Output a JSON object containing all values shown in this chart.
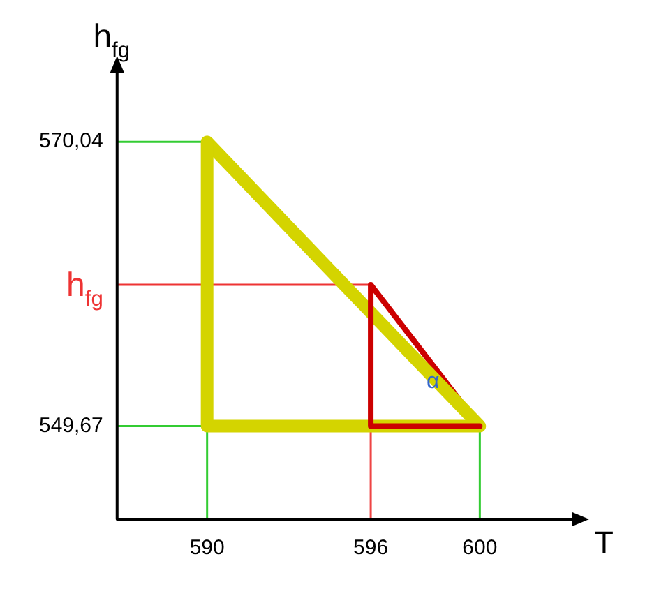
{
  "chart_data": {
    "type": "line",
    "xlabel": "T",
    "ylabel": "h$_{fg}$",
    "xlim": [
      586.7,
      603.6
    ],
    "ylim": [
      543,
      575.4
    ],
    "xticks": [
      590,
      596,
      600
    ],
    "yticks": [
      {
        "value": 549.67,
        "label": "549,67"
      },
      {
        "value": 570.04,
        "label": "570,04"
      }
    ],
    "series": [
      {
        "color": "#d4d400",
        "x": [
          590,
          600
        ],
        "values": [
          570.04,
          549.67
        ]
      },
      {
        "color": "#cc0000",
        "x": [
          596,
          600
        ],
        "values": [
          559.8,
          549.67
        ]
      }
    ],
    "ref_lines": [
      {
        "axis": "x",
        "value": 590,
        "color": "#33cc33"
      },
      {
        "axis": "x",
        "value": 596,
        "color": "#ee4444"
      },
      {
        "axis": "x",
        "value": 600,
        "color": "#33cc33"
      },
      {
        "axis": "y",
        "value": 570.04,
        "color": "#33cc33"
      },
      {
        "axis": "y",
        "value": 549.67,
        "color": "#33cc33"
      },
      {
        "axis": "y",
        "value": 559.8,
        "color": "#ee3333",
        "label": "h$_{fg}$"
      }
    ],
    "annotations": [
      {
        "text": "α",
        "x": 599,
        "y": 552
      }
    ],
    "grid": false,
    "legend": false,
    "marker": "none",
    "line_style": "solid"
  }
}
